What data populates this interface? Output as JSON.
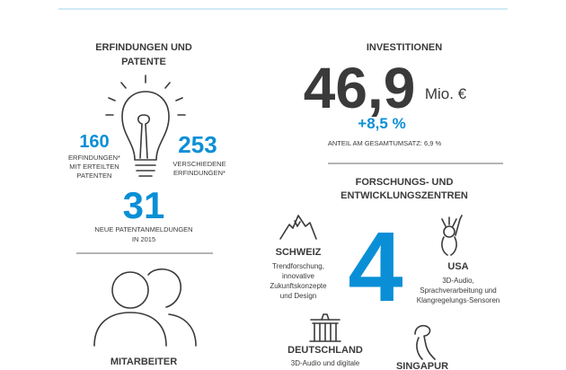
{
  "patents": {
    "title": [
      "ERFINDUNGEN UND",
      "PATENTE"
    ],
    "granted": {
      "value": 160,
      "label": [
        "ERFINDUNGEN*",
        "MIT ERTEILTEN",
        "PATENTEN"
      ]
    },
    "distinct": {
      "value": 253,
      "label": [
        "VERSCHIEDENE",
        "ERFINDUNGEN*"
      ]
    },
    "applications": {
      "value": 31,
      "label": [
        "NEUE PATENTANMELDUNGEN",
        "IN 2015"
      ]
    }
  },
  "employees": {
    "title": "MITARBEITER"
  },
  "investments": {
    "title": "INVESTITIONEN",
    "amount": "46,9",
    "unit": "Mio. €",
    "change": "+8,5 %",
    "share": "ANTEIL AM GESAMTUMSATZ: 6,9 %"
  },
  "rd_centers": {
    "title": [
      "FORSCHUNGS- UND",
      "ENTWICKLUNGSZENTREN"
    ],
    "count": 4,
    "locations": [
      {
        "name": "SCHWEIZ",
        "focus": [
          "Trendforschung,",
          "innovative",
          "Zukunftskonzepte",
          "und Design"
        ]
      },
      {
        "name": "USA",
        "focus": [
          "3D-Audio,",
          "Sprachverarbeitung und",
          "Klangregelungs-Sensoren"
        ]
      },
      {
        "name": "DEUTSCHLAND",
        "focus": [
          "3D-Audio und digitale"
        ]
      },
      {
        "name": "SINGAPUR",
        "focus": []
      }
    ]
  }
}
